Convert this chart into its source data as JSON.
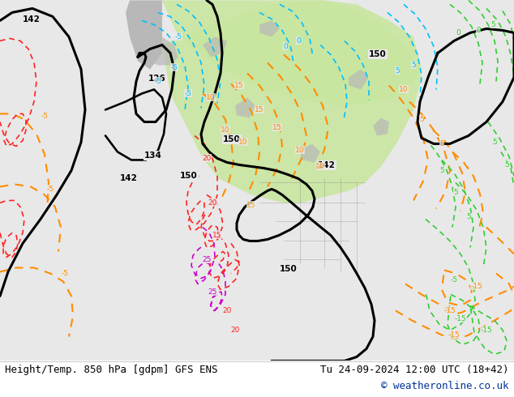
{
  "title_left": "Height/Temp. 850 hPa [gdpm] GFS ENS",
  "title_right": "Tu 24-09-2024 12:00 UTC (18+42)",
  "copyright": "© weatheronline.co.uk",
  "bg_color": "#e8e8e8",
  "map_bg": "#d4d4d4",
  "land_green": "#c8e6a0",
  "land_gray": "#b8b8b8",
  "title_fontsize": 9,
  "copyright_color": "#003399",
  "bottom_bg": "#ffffff",
  "contour_black_lw": 2.2,
  "contour_orange_lw": 1.5,
  "contour_cyan_lw": 1.2,
  "contour_green_lw": 1.2,
  "contour_red_lw": 1.2,
  "contour_magenta_lw": 1.2
}
